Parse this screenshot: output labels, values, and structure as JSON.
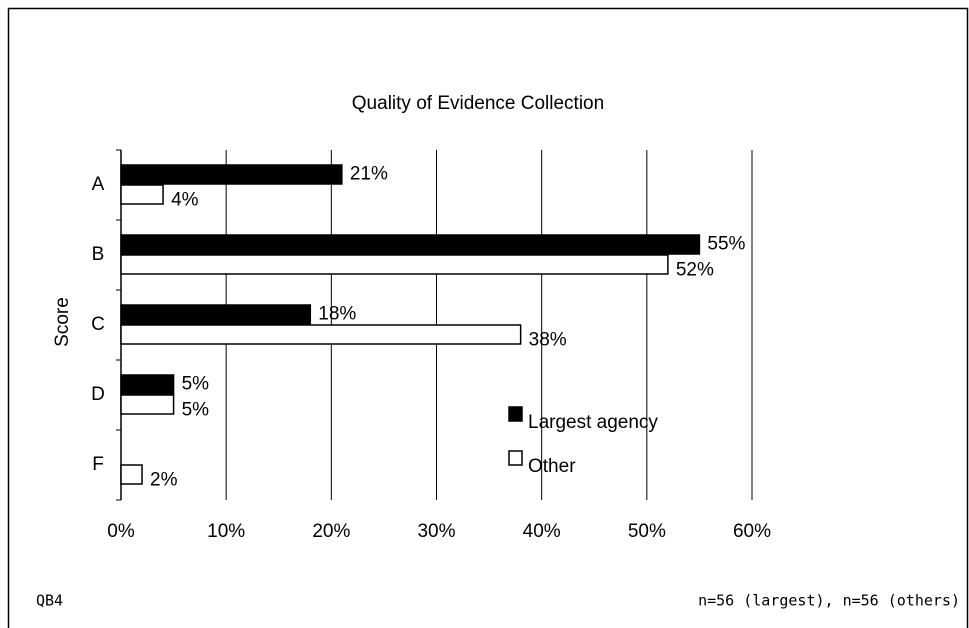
{
  "chart_data": {
    "type": "bar",
    "orientation": "horizontal",
    "title": "Quality of Evidence Collection",
    "ylabel": "Score",
    "categories": [
      "A",
      "B",
      "C",
      "D",
      "F"
    ],
    "series": [
      {
        "name": "Largest agency",
        "color": "#000000",
        "values": [
          21,
          55,
          18,
          5,
          null
        ],
        "value_labels": [
          "21%",
          "55%",
          "18%",
          "5%",
          null
        ]
      },
      {
        "name": "Other",
        "color": "#ffffff",
        "values": [
          4,
          52,
          38,
          5,
          2
        ],
        "value_labels": [
          "4%",
          "52%",
          "38%",
          "5%",
          "2%"
        ]
      }
    ],
    "xlim": [
      0,
      60
    ],
    "xticks": [
      {
        "value": 0,
        "label": "0%"
      },
      {
        "value": 10,
        "label": "10%"
      },
      {
        "value": 20,
        "label": "20%"
      },
      {
        "value": 30,
        "label": "30%"
      },
      {
        "value": 40,
        "label": "40%"
      },
      {
        "value": 50,
        "label": "50%"
      },
      {
        "value": 60,
        "label": "60%"
      }
    ],
    "grid": true,
    "footnote_left": "QB4",
    "footnote_right": "n=56 (largest), n=56 (others)"
  }
}
